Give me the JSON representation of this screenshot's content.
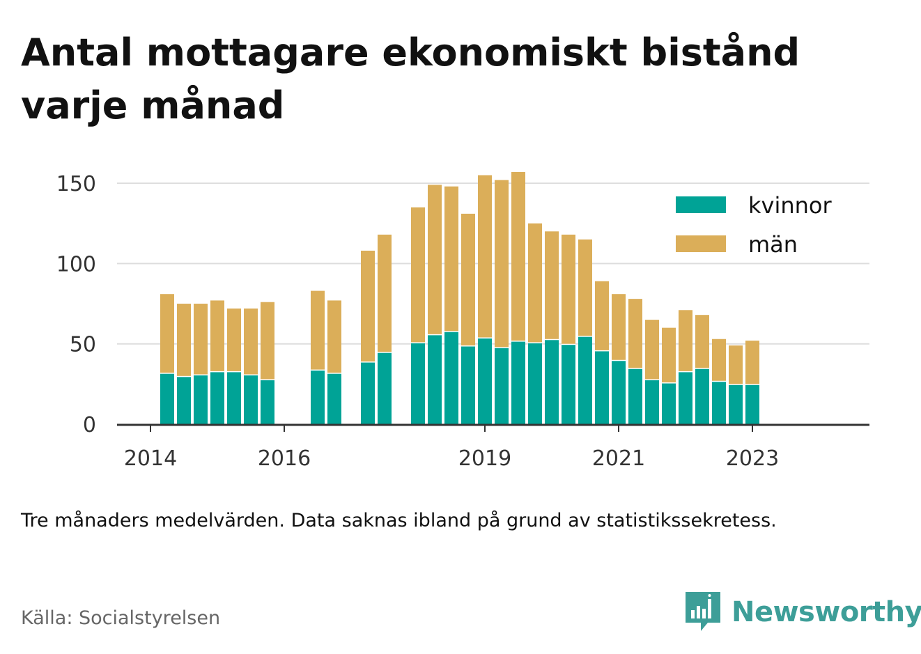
{
  "title": "Antal mottagare ekonomiskt bistånd varje månad",
  "note": "Tre månaders medelvärden. Data saknas ibland på grund av statistikssekretess.",
  "source": "Källa: Socialstyrelsen",
  "brand": {
    "name": "Newsworthy",
    "icon": "newsworthy-logo-icon",
    "color": "#3d9e98"
  },
  "chart_data": {
    "type": "bar",
    "stacked": true,
    "x_tick_labels": [
      "2014",
      "2016",
      "2019",
      "2021",
      "2023"
    ],
    "x_ticks": [
      2014.0,
      2016.0,
      2019.0,
      2021.0,
      2023.0
    ],
    "xlim": [
      2013.5,
      2024.75
    ],
    "ylim": [
      0,
      160
    ],
    "y_ticks": [
      0,
      50,
      100,
      150
    ],
    "grid": true,
    "legend_position": "top-right",
    "x": [
      2014.25,
      2014.5,
      2014.75,
      2015.0,
      2015.25,
      2015.5,
      2015.75,
      2016.5,
      2016.75,
      2017.25,
      2017.5,
      2018.0,
      2018.25,
      2018.5,
      2018.75,
      2019.0,
      2019.25,
      2019.5,
      2019.75,
      2020.0,
      2020.25,
      2020.5,
      2020.75,
      2021.0,
      2021.25,
      2021.5,
      2021.75,
      2022.0,
      2022.25,
      2022.5,
      2022.75,
      2023.0
    ],
    "series": [
      {
        "name": "kvinnor",
        "color": "#00a396",
        "values": [
          32,
          30,
          31,
          33,
          33,
          31,
          28,
          34,
          32,
          39,
          45,
          51,
          56,
          58,
          49,
          54,
          48,
          52,
          51,
          53,
          50,
          55,
          46,
          40,
          35,
          28,
          26,
          33,
          35,
          27,
          25,
          25
        ]
      },
      {
        "name": "män",
        "color": "#dbae59",
        "values": [
          49,
          45,
          44,
          44,
          39,
          41,
          48,
          49,
          45,
          69,
          73,
          84,
          93,
          90,
          82,
          101,
          104,
          105,
          74,
          67,
          68,
          60,
          43,
          41,
          43,
          37,
          34,
          38,
          33,
          26,
          24,
          27
        ]
      }
    ]
  }
}
